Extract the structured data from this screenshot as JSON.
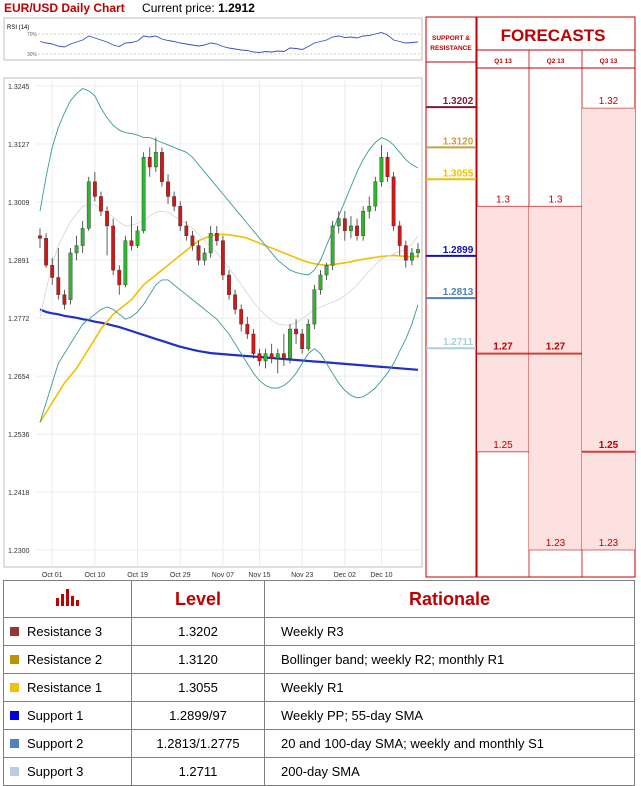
{
  "header": {
    "title": "EUR/USD Daily Chart",
    "current_price_label": "Current price:",
    "current_price": "1.2912"
  },
  "rsi_panel": {
    "label": "RSI (14)",
    "ticks": [
      "70%",
      "30%"
    ]
  },
  "support_resistance_panel": {
    "title_line1": "SUPPORT &",
    "title_line2": "RESISTANCE",
    "levels": [
      {
        "label": "1.3202",
        "color": "#7b1c3a"
      },
      {
        "label": "1.3120",
        "color": "#c8a040"
      },
      {
        "label": "1.3055",
        "color": "#f0c000"
      },
      {
        "label": "1.2899",
        "color": "#1010c0"
      },
      {
        "label": "1.2813",
        "color": "#4f81bd"
      },
      {
        "label": "1.2711",
        "color": "#a9cfe0"
      }
    ]
  },
  "forecasts_panel": {
    "title": "FORECASTS",
    "columns": [
      {
        "label": "Q1 13",
        "values": [
          "1.3",
          "1.27",
          "1.25"
        ],
        "bold": [
          false,
          true,
          false
        ]
      },
      {
        "label": "Q2 13",
        "values": [
          "1.3",
          "1.27",
          "1.23"
        ],
        "bold": [
          false,
          true,
          false
        ]
      },
      {
        "label": "Q3 13",
        "values": [
          "1.32",
          "1.25",
          "1.23"
        ],
        "bold": [
          false,
          true,
          false
        ]
      }
    ]
  },
  "chart_data": {
    "type": "line",
    "title": "EUR/USD Daily Chart",
    "x_tick_labels": [
      "Oct 01",
      "Oct 10",
      "Oct 19",
      "Oct 29",
      "Nov 07",
      "Nov 15",
      "Nov 23",
      "Dec 02",
      "Dec 10"
    ],
    "y_tick_labels": [
      "1.3245",
      "1.3127",
      "1.3009",
      "1.2891",
      "1.2772",
      "1.2654",
      "1.2536",
      "1.2418",
      "1.2300"
    ],
    "ylim": [
      1.23,
      1.3245
    ],
    "candles": [
      [
        1.294,
        1.2935,
        1.2955,
        1.2915
      ],
      [
        1.2935,
        1.288,
        1.2945,
        1.2875
      ],
      [
        1.288,
        1.2855,
        1.2895,
        1.284
      ],
      [
        1.2855,
        1.282,
        1.2915,
        1.281
      ],
      [
        1.282,
        1.28,
        1.283,
        1.279
      ],
      [
        1.281,
        1.2905,
        1.2915,
        1.28
      ],
      [
        1.2905,
        1.292,
        1.294,
        1.289
      ],
      [
        1.292,
        1.2955,
        1.297,
        1.2905
      ],
      [
        1.2955,
        1.305,
        1.306,
        1.295
      ],
      [
        1.305,
        1.302,
        1.307,
        1.301
      ],
      [
        1.302,
        1.299,
        1.303,
        1.298
      ],
      [
        1.299,
        1.296,
        1.3,
        1.29
      ],
      [
        1.296,
        1.287,
        1.2975,
        1.286
      ],
      [
        1.287,
        1.284,
        1.288,
        1.282
      ],
      [
        1.284,
        1.293,
        1.294,
        1.2835
      ],
      [
        1.293,
        1.292,
        1.298,
        1.291
      ],
      [
        1.292,
        1.295,
        1.296,
        1.2915
      ],
      [
        1.295,
        1.31,
        1.311,
        1.2945
      ],
      [
        1.31,
        1.308,
        1.312,
        1.306
      ],
      [
        1.308,
        1.311,
        1.314,
        1.307
      ],
      [
        1.311,
        1.305,
        1.312,
        1.304
      ],
      [
        1.305,
        1.302,
        1.3065,
        1.3005
      ],
      [
        1.302,
        1.3,
        1.303,
        1.299
      ],
      [
        1.3,
        1.296,
        1.301,
        1.295
      ],
      [
        1.296,
        1.294,
        1.297,
        1.293
      ],
      [
        1.294,
        1.292,
        1.295,
        1.291
      ],
      [
        1.292,
        1.289,
        1.293,
        1.288
      ],
      [
        1.289,
        1.2905,
        1.2915,
        1.288
      ],
      [
        1.2905,
        1.2945,
        1.296,
        1.2895
      ],
      [
        1.2945,
        1.293,
        1.296,
        1.292
      ],
      [
        1.293,
        1.286,
        1.294,
        1.285
      ],
      [
        1.286,
        1.282,
        1.287,
        1.281
      ],
      [
        1.282,
        1.279,
        1.283,
        1.278
      ],
      [
        1.279,
        1.276,
        1.28,
        1.2745
      ],
      [
        1.276,
        1.274,
        1.2775,
        1.273
      ],
      [
        1.274,
        1.27,
        1.275,
        1.269
      ],
      [
        1.27,
        1.2685,
        1.271,
        1.2675
      ],
      [
        1.2685,
        1.27,
        1.271,
        1.267
      ],
      [
        1.27,
        1.269,
        1.272,
        1.268
      ],
      [
        1.269,
        1.27,
        1.271,
        1.266
      ],
      [
        1.27,
        1.269,
        1.274,
        1.2675
      ],
      [
        1.269,
        1.275,
        1.276,
        1.268
      ],
      [
        1.275,
        1.274,
        1.277,
        1.272
      ],
      [
        1.274,
        1.271,
        1.275,
        1.27
      ],
      [
        1.271,
        1.276,
        1.277,
        1.2705
      ],
      [
        1.276,
        1.283,
        1.284,
        1.275
      ],
      [
        1.283,
        1.286,
        1.287,
        1.282
      ],
      [
        1.286,
        1.288,
        1.2885,
        1.285
      ],
      [
        1.288,
        1.296,
        1.297,
        1.287
      ],
      [
        1.296,
        1.2975,
        1.299,
        1.2945
      ],
      [
        1.2975,
        1.295,
        1.299,
        1.293
      ],
      [
        1.295,
        1.296,
        1.298,
        1.2935
      ],
      [
        1.296,
        1.294,
        1.2975,
        1.293
      ],
      [
        1.294,
        1.299,
        1.3,
        1.293
      ],
      [
        1.299,
        1.3,
        1.302,
        1.2975
      ],
      [
        1.3,
        1.305,
        1.306,
        1.299
      ],
      [
        1.305,
        1.31,
        1.3125,
        1.304
      ],
      [
        1.31,
        1.306,
        1.311,
        1.305
      ],
      [
        1.306,
        1.296,
        1.307,
        1.295
      ],
      [
        1.296,
        1.292,
        1.297,
        1.29
      ],
      [
        1.292,
        1.289,
        1.293,
        1.2875
      ],
      [
        1.289,
        1.2905,
        1.2915,
        1.288
      ],
      [
        1.2905,
        1.2912,
        1.2925,
        1.2895
      ]
    ],
    "series": [
      {
        "name": "",
        "color": "#1f2fc8",
        "values": [
          1.279,
          1.2785,
          1.2782,
          1.278,
          1.2777,
          1.2775,
          1.2773,
          1.277,
          1.2768,
          1.2765,
          1.2763,
          1.276,
          1.2757,
          1.2754,
          1.275,
          1.2746,
          1.2742,
          1.2738,
          1.2734,
          1.273,
          1.2726,
          1.2722,
          1.2718,
          1.2714,
          1.2711,
          1.2708,
          1.2705,
          1.2703,
          1.2701,
          1.27,
          1.2699,
          1.2698,
          1.2697,
          1.2696,
          1.2695,
          1.2694,
          1.2693,
          1.2692,
          1.2691,
          1.269,
          1.2689,
          1.2688,
          1.2687,
          1.2686,
          1.2685,
          1.2684,
          1.2683,
          1.2682,
          1.2681,
          1.268,
          1.2679,
          1.2678,
          1.2677,
          1.2676,
          1.2675,
          1.2674,
          1.2673,
          1.2672,
          1.2671,
          1.267,
          1.2669,
          1.2668,
          1.2667
        ]
      },
      {
        "name": "",
        "color": "#f2c000",
        "values": [
          1.256,
          1.258,
          1.26,
          1.262,
          1.264,
          1.2655,
          1.267,
          1.269,
          1.271,
          1.273,
          1.275,
          1.2765,
          1.278,
          1.279,
          1.28,
          1.281,
          1.2825,
          1.284,
          1.285,
          1.286,
          1.287,
          1.288,
          1.289,
          1.29,
          1.291,
          1.292,
          1.293,
          1.2935,
          1.294,
          1.2942,
          1.2943,
          1.2942,
          1.294,
          1.2938,
          1.2935,
          1.293,
          1.2925,
          1.292,
          1.2915,
          1.291,
          1.2905,
          1.29,
          1.2895,
          1.289,
          1.2886,
          1.2883,
          1.2881,
          1.288,
          1.2881,
          1.2883,
          1.2885,
          1.2887,
          1.289,
          1.2892,
          1.2894,
          1.2896,
          1.2898,
          1.2899,
          1.29,
          1.2899,
          1.2898,
          1.2897,
          1.2899
        ]
      },
      {
        "name": "",
        "color": "#3a9a9a",
        "values": [
          1.299,
          1.306,
          1.312,
          1.316,
          1.319,
          1.3215,
          1.323,
          1.324,
          1.3235,
          1.3225,
          1.32,
          1.318,
          1.3165,
          1.3155,
          1.315,
          1.3148,
          1.3145,
          1.314,
          1.314,
          1.3135,
          1.313,
          1.3125,
          1.312,
          1.3115,
          1.311,
          1.31,
          1.3085,
          1.307,
          1.3055,
          1.304,
          1.3025,
          1.301,
          1.2995,
          1.298,
          1.2965,
          1.295,
          1.2935,
          1.292,
          1.2905,
          1.289,
          1.288,
          1.287,
          1.2865,
          1.2862,
          1.286,
          1.287,
          1.289,
          1.292,
          1.295,
          1.298,
          1.301,
          1.304,
          1.307,
          1.3095,
          1.3115,
          1.313,
          1.314,
          1.3135,
          1.3125,
          1.311,
          1.3095,
          1.3085,
          1.3078
        ]
      },
      {
        "name": "",
        "color": "#3a9a9a",
        "values": [
          1.256,
          1.26,
          1.264,
          1.268,
          1.27,
          1.272,
          1.274,
          1.276,
          1.277,
          1.278,
          1.279,
          1.2795,
          1.279,
          1.278,
          1.277,
          1.2775,
          1.2785,
          1.28,
          1.282,
          1.284,
          1.285,
          1.285,
          1.284,
          1.283,
          1.282,
          1.281,
          1.28,
          1.279,
          1.278,
          1.277,
          1.2755,
          1.274,
          1.272,
          1.27,
          1.268,
          1.266,
          1.2645,
          1.2635,
          1.263,
          1.263,
          1.2635,
          1.2645,
          1.266,
          1.268,
          1.27,
          1.271,
          1.27,
          1.268,
          1.266,
          1.264,
          1.2625,
          1.2615,
          1.261,
          1.2612,
          1.262,
          1.263,
          1.2645,
          1.266,
          1.268,
          1.2705,
          1.273,
          1.276,
          1.28
        ]
      },
      {
        "name": "",
        "color": "#d8d8d8",
        "values": [
          1.2775,
          1.283,
          1.288,
          1.292,
          1.2945,
          1.2968,
          1.2985,
          1.3,
          1.3003,
          1.3003,
          1.2995,
          1.2988,
          1.2978,
          1.2968,
          1.296,
          1.2962,
          1.2965,
          1.297,
          1.298,
          1.2988,
          1.299,
          1.2988,
          1.298,
          1.2973,
          1.2965,
          1.2955,
          1.2943,
          1.293,
          1.2918,
          1.2905,
          1.289,
          1.2875,
          1.2858,
          1.284,
          1.2823,
          1.2805,
          1.279,
          1.2778,
          1.2768,
          1.276,
          1.2758,
          1.2758,
          1.2763,
          1.2771,
          1.278,
          1.279,
          1.2795,
          1.28,
          1.2805,
          1.281,
          1.2818,
          1.2828,
          1.284,
          1.2854,
          1.2868,
          1.288,
          1.2893,
          1.2898,
          1.2903,
          1.2908,
          1.2913,
          1.2923,
          1.2939
        ]
      }
    ],
    "rsi": [
      55,
      52,
      50,
      46,
      44,
      50,
      54,
      58,
      66,
      62,
      58,
      54,
      48,
      45,
      52,
      53,
      56,
      66,
      64,
      66,
      60,
      57,
      55,
      52,
      50,
      48,
      46,
      48,
      52,
      50,
      45,
      42,
      40,
      38,
      37,
      34,
      33,
      35,
      34,
      36,
      35,
      42,
      41,
      39,
      45,
      52,
      55,
      58,
      64,
      66,
      63,
      64,
      62,
      66,
      67,
      70,
      73,
      68,
      58,
      55,
      52,
      53,
      54
    ],
    "grid": true,
    "legend": "none"
  },
  "table": {
    "headers": {
      "icon": "bar-chart-icon",
      "level": "Level",
      "rationale": "Rationale"
    },
    "rows": [
      {
        "name": "Resistance 3",
        "color": "#953735",
        "level": "1.3202",
        "rationale": "Weekly R3"
      },
      {
        "name": "Resistance 2",
        "color": "#c09000",
        "level": "1.3120",
        "rationale": "Bollinger band; weekly R2; monthly R1"
      },
      {
        "name": "Resistance 1",
        "color": "#f2c000",
        "level": "1.3055",
        "rationale": "Weekly R1"
      },
      {
        "name": "Support 1",
        "color": "#0000e0",
        "level": "1.2899/97",
        "rationale": "Weekly PP; 55-day SMA"
      },
      {
        "name": "Support 2",
        "color": "#4f81bd",
        "level": "1.2813/1.2775",
        "rationale": "20 and 100-day SMA; weekly and monthly S1"
      },
      {
        "name": "Support 3",
        "color": "#b9cde5",
        "level": "1.2711",
        "rationale": "200-day SMA"
      }
    ]
  }
}
